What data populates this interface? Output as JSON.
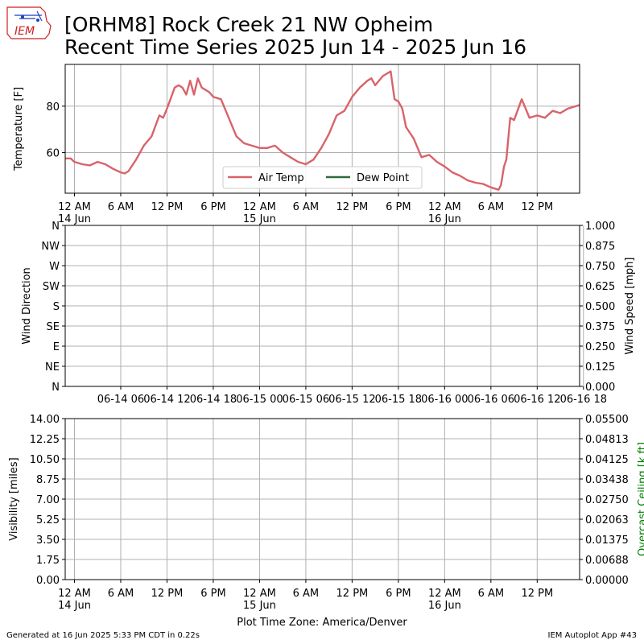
{
  "title": {
    "line1": "[ORHM8] Rock Creek 21 NW Opheim",
    "line2": "Recent Time Series 2025 Jun 14 - 2025 Jun 16"
  },
  "logo": {
    "text": "IEM"
  },
  "time_axis": {
    "ticks": [
      "12 AM",
      "6 AM",
      "12 PM",
      "6 PM",
      "12 AM",
      "6 AM",
      "12 PM",
      "6 PM",
      "12 AM",
      "6 AM",
      "12 PM"
    ],
    "tick_hours": [
      0,
      6,
      12,
      18,
      24,
      30,
      36,
      42,
      48,
      54,
      60
    ],
    "date_labels": [
      {
        "hour": 0,
        "text": "14 Jun"
      },
      {
        "hour": 24,
        "text": "15 Jun"
      },
      {
        "hour": 48,
        "text": "16 Jun"
      }
    ],
    "wind_ticks": [
      "06-14 06",
      "06-14 12",
      "06-14 18",
      "06-15 00",
      "06-15 06",
      "06-15 12",
      "06-15 18",
      "06-16 00",
      "06-16 06",
      "06-16 12",
      "06-16 18"
    ],
    "wind_tick_hours": [
      6,
      12,
      18,
      24,
      30,
      36,
      42,
      48,
      54,
      60,
      66
    ],
    "xlabel": "Plot Time Zone: America/Denver"
  },
  "chart_data": [
    {
      "type": "line",
      "ylabel": "Temperature [F]",
      "yticks": [
        60,
        80
      ],
      "ylim": [
        42.5,
        98
      ],
      "xlim_hours": [
        -1.2,
        65.5
      ],
      "grid": true,
      "legend": {
        "placement": "lower center",
        "entries": [
          "Air Temp",
          "Dew Point"
        ]
      },
      "series": [
        {
          "name": "Air Temp",
          "color": "#d9636a",
          "x_hours": [
            -1.2,
            -0.5,
            0,
            1,
            2,
            3,
            4,
            5,
            6,
            6.5,
            7,
            8,
            9,
            10,
            11,
            11.5,
            12,
            13,
            13.5,
            14,
            14.5,
            15,
            15.5,
            16,
            16.5,
            17,
            17.5,
            18,
            19,
            20,
            21,
            22,
            23,
            24,
            25,
            26,
            27,
            28,
            29,
            30,
            31,
            32,
            33,
            34,
            35,
            36,
            36.5,
            37,
            38,
            38.5,
            39,
            40,
            41,
            41.5,
            42,
            42.5,
            43,
            44,
            45,
            46,
            47,
            48,
            49,
            50,
            51,
            52,
            53,
            54,
            55,
            55.3,
            55.7,
            56,
            56.5,
            57,
            58,
            59,
            60,
            61,
            62,
            63,
            64,
            65.5
          ],
          "y": [
            57.5,
            57.5,
            56,
            55,
            54.5,
            56,
            55,
            53,
            51.5,
            51,
            52,
            57,
            63,
            67,
            76,
            75,
            79,
            88,
            89,
            88,
            85,
            91,
            85,
            92,
            88,
            87,
            86,
            84,
            83,
            75,
            67,
            64,
            63,
            62,
            62,
            63,
            60,
            58,
            56,
            55,
            57,
            62,
            68,
            76,
            78,
            84,
            86,
            88,
            91,
            92,
            89,
            93,
            95,
            83,
            82,
            79,
            71,
            66,
            58,
            59,
            56,
            54,
            51.5,
            50,
            48,
            47,
            46.5,
            45,
            44,
            46,
            54,
            57,
            75,
            74,
            83,
            75,
            76,
            75,
            78,
            77,
            79,
            80.5
          ]
        },
        {
          "name": "Dew Point",
          "color": "#2e6b3a",
          "x_hours": [],
          "y": []
        }
      ]
    },
    {
      "type": "line",
      "ylabel": "Wind Direction",
      "y2label": "Wind Speed [mph]",
      "yticks": [
        "N",
        "NE",
        "E",
        "SE",
        "S",
        "SW",
        "W",
        "NW",
        "N"
      ],
      "y2ticks": [
        "0.000",
        "0.125",
        "0.250",
        "0.375",
        "0.500",
        "0.625",
        "0.750",
        "0.875",
        "1.000"
      ],
      "ylim": [
        0,
        360
      ],
      "y2lim": [
        0,
        1
      ],
      "grid": true,
      "series": []
    },
    {
      "type": "line",
      "ylabel": "Visibility [miles]",
      "y2label": "Overcast Ceiling [k ft]",
      "yticks": [
        "0.00",
        "1.75",
        "3.50",
        "5.25",
        "7.00",
        "8.75",
        "10.50",
        "12.25",
        "14.00"
      ],
      "y2ticks": [
        "0.00000",
        "0.00688",
        "0.01375",
        "0.02063",
        "0.02750",
        "0.03438",
        "0.04125",
        "0.04813",
        "0.05500"
      ],
      "ylim": [
        0,
        14
      ],
      "y2lim": [
        0,
        0.055
      ],
      "grid": true,
      "colors": {
        "y2label": "#008000"
      },
      "series": []
    }
  ],
  "footer": {
    "left": "Generated at 16 Jun 2025 5:33 PM CDT in 0.22s",
    "right": "IEM Autoplot App #43"
  }
}
